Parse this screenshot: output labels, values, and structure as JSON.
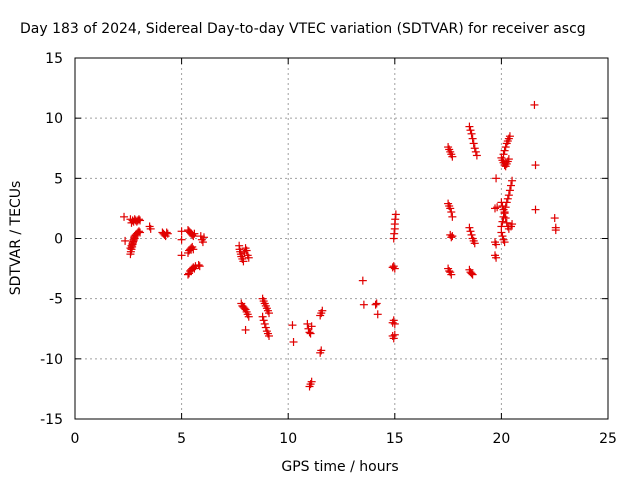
{
  "chart_data": {
    "type": "scatter",
    "title": "Day 183 of 2024, Sidereal Day-to-day VTEC variation (SDTVAR) for receiver ascg",
    "xlabel": "GPS time / hours",
    "ylabel": "SDTVAR / TECUs",
    "xlim": [
      0,
      25
    ],
    "ylim": [
      -15,
      15
    ],
    "xticks": [
      0,
      5,
      10,
      15,
      20,
      25
    ],
    "yticks": [
      -15,
      -10,
      -5,
      0,
      5,
      10,
      15
    ],
    "xtick_labels": [
      "0",
      "5",
      "10",
      "15",
      "20",
      "25"
    ],
    "ytick_labels": [
      "-15",
      "-10",
      "-5",
      "0",
      "5",
      "10",
      "15"
    ],
    "grid": true,
    "marker": "plus",
    "series": [
      {
        "name": "SDTVAR",
        "color": "#e00000",
        "points": [
          [
            2.3,
            1.8
          ],
          [
            2.35,
            -0.2
          ],
          [
            2.6,
            1.6
          ],
          [
            2.65,
            1.3
          ],
          [
            2.7,
            1.5
          ],
          [
            2.75,
            1.4
          ],
          [
            2.8,
            1.6
          ],
          [
            2.85,
            1.5
          ],
          [
            2.9,
            1.4
          ],
          [
            2.95,
            1.5
          ],
          [
            3.0,
            1.6
          ],
          [
            3.05,
            1.5
          ],
          [
            2.6,
            -1.3
          ],
          [
            2.62,
            -1.1
          ],
          [
            2.65,
            -0.9
          ],
          [
            2.68,
            -0.7
          ],
          [
            2.7,
            -0.5
          ],
          [
            2.72,
            -0.3
          ],
          [
            2.75,
            -0.1
          ],
          [
            2.78,
            0.1
          ],
          [
            2.8,
            0.2
          ],
          [
            2.85,
            0.3
          ],
          [
            2.9,
            0.4
          ],
          [
            2.95,
            0.5
          ],
          [
            3.0,
            0.6
          ],
          [
            3.05,
            0.5
          ],
          [
            2.6,
            -0.8
          ],
          [
            2.65,
            -0.6
          ],
          [
            2.7,
            -0.4
          ],
          [
            2.75,
            -0.2
          ],
          [
            2.8,
            0.0
          ],
          [
            3.5,
            1.0
          ],
          [
            3.55,
            0.8
          ],
          [
            4.1,
            0.5
          ],
          [
            4.15,
            0.4
          ],
          [
            4.2,
            0.3
          ],
          [
            4.25,
            0.2
          ],
          [
            4.3,
            0.5
          ],
          [
            4.35,
            0.4
          ],
          [
            5.0,
            -0.1
          ],
          [
            5.0,
            -1.4
          ],
          [
            5.0,
            0.6
          ],
          [
            5.3,
            0.7
          ],
          [
            5.35,
            0.6
          ],
          [
            5.4,
            0.5
          ],
          [
            5.45,
            0.4
          ],
          [
            5.5,
            0.3
          ],
          [
            5.55,
            0.2
          ],
          [
            5.6,
            0.4
          ],
          [
            5.3,
            -1.2
          ],
          [
            5.35,
            -1.0
          ],
          [
            5.4,
            -0.9
          ],
          [
            5.45,
            -0.8
          ],
          [
            5.5,
            -0.7
          ],
          [
            5.55,
            -0.9
          ],
          [
            5.3,
            -3.0
          ],
          [
            5.35,
            -2.9
          ],
          [
            5.4,
            -2.7
          ],
          [
            5.45,
            -2.6
          ],
          [
            5.5,
            -2.5
          ],
          [
            5.55,
            -2.4
          ],
          [
            5.6,
            -2.5
          ],
          [
            5.65,
            -2.3
          ],
          [
            5.8,
            -2.2
          ],
          [
            5.85,
            -2.3
          ],
          [
            5.9,
            0.2
          ],
          [
            5.95,
            -0.1
          ],
          [
            6.0,
            -0.3
          ],
          [
            6.05,
            0.1
          ],
          [
            7.7,
            -0.6
          ],
          [
            7.72,
            -0.9
          ],
          [
            7.75,
            -1.1
          ],
          [
            7.78,
            -1.3
          ],
          [
            7.8,
            -1.5
          ],
          [
            7.85,
            -1.7
          ],
          [
            7.9,
            -1.9
          ],
          [
            7.95,
            -1.2
          ],
          [
            8.0,
            -0.8
          ],
          [
            8.05,
            -1.0
          ],
          [
            8.1,
            -1.4
          ],
          [
            8.15,
            -1.6
          ],
          [
            7.8,
            -5.4
          ],
          [
            7.85,
            -5.6
          ],
          [
            7.9,
            -5.7
          ],
          [
            7.95,
            -5.8
          ],
          [
            8.0,
            -5.9
          ],
          [
            8.05,
            -6.1
          ],
          [
            8.1,
            -6.3
          ],
          [
            8.15,
            -6.5
          ],
          [
            8.0,
            -7.6
          ],
          [
            8.8,
            -5.0
          ],
          [
            8.85,
            -5.2
          ],
          [
            8.9,
            -5.4
          ],
          [
            8.95,
            -5.6
          ],
          [
            9.0,
            -5.8
          ],
          [
            9.05,
            -6.0
          ],
          [
            9.1,
            -6.2
          ],
          [
            8.8,
            -6.5
          ],
          [
            8.85,
            -6.8
          ],
          [
            8.9,
            -7.1
          ],
          [
            8.95,
            -7.4
          ],
          [
            9.0,
            -7.7
          ],
          [
            9.05,
            -7.9
          ],
          [
            9.1,
            -8.1
          ],
          [
            10.2,
            -7.2
          ],
          [
            10.25,
            -8.6
          ],
          [
            10.9,
            -7.1
          ],
          [
            10.95,
            -7.5
          ],
          [
            11.0,
            -7.8
          ],
          [
            11.05,
            -7.9
          ],
          [
            11.1,
            -7.3
          ],
          [
            11.0,
            -12.3
          ],
          [
            11.05,
            -12.1
          ],
          [
            11.1,
            -11.9
          ],
          [
            11.5,
            -6.4
          ],
          [
            11.55,
            -6.2
          ],
          [
            11.6,
            -6.0
          ],
          [
            11.5,
            -9.5
          ],
          [
            11.55,
            -9.3
          ],
          [
            13.5,
            -3.5
          ],
          [
            13.55,
            -5.5
          ],
          [
            14.1,
            -5.5
          ],
          [
            14.15,
            -5.4
          ],
          [
            14.2,
            -6.3
          ],
          [
            14.9,
            -7.0
          ],
          [
            14.95,
            -6.8
          ],
          [
            15.0,
            -7.1
          ],
          [
            14.9,
            -8.1
          ],
          [
            14.95,
            -8.3
          ],
          [
            15.0,
            -8.0
          ],
          [
            14.9,
            -2.4
          ],
          [
            14.95,
            -2.3
          ],
          [
            15.0,
            -2.5
          ],
          [
            14.95,
            0.0
          ],
          [
            14.97,
            0.4
          ],
          [
            15.0,
            0.8
          ],
          [
            15.0,
            1.2
          ],
          [
            15.02,
            1.6
          ],
          [
            15.05,
            2.0
          ],
          [
            17.5,
            7.6
          ],
          [
            17.55,
            7.4
          ],
          [
            17.6,
            7.2
          ],
          [
            17.65,
            7.0
          ],
          [
            17.7,
            6.8
          ],
          [
            17.5,
            2.9
          ],
          [
            17.55,
            2.7
          ],
          [
            17.6,
            2.5
          ],
          [
            17.65,
            2.2
          ],
          [
            17.7,
            1.8
          ],
          [
            17.6,
            0.3
          ],
          [
            17.65,
            0.1
          ],
          [
            17.7,
            0.2
          ],
          [
            17.5,
            -2.5
          ],
          [
            17.55,
            -2.7
          ],
          [
            17.6,
            -2.8
          ],
          [
            17.65,
            -3.0
          ],
          [
            18.5,
            9.3
          ],
          [
            18.55,
            9.0
          ],
          [
            18.6,
            8.7
          ],
          [
            18.65,
            8.3
          ],
          [
            18.7,
            7.9
          ],
          [
            18.75,
            7.5
          ],
          [
            18.8,
            7.2
          ],
          [
            18.85,
            6.9
          ],
          [
            18.5,
            0.9
          ],
          [
            18.55,
            0.6
          ],
          [
            18.6,
            0.3
          ],
          [
            18.65,
            0.0
          ],
          [
            18.7,
            -0.2
          ],
          [
            18.75,
            -0.4
          ],
          [
            18.5,
            -2.6
          ],
          [
            18.55,
            -2.8
          ],
          [
            18.6,
            -2.9
          ],
          [
            18.65,
            -3.0
          ],
          [
            19.7,
            -0.3
          ],
          [
            19.75,
            -0.5
          ],
          [
            19.7,
            -1.4
          ],
          [
            19.75,
            -1.6
          ],
          [
            19.7,
            2.5
          ],
          [
            19.8,
            2.6
          ],
          [
            19.75,
            5.0
          ],
          [
            20.0,
            6.7
          ],
          [
            20.05,
            6.5
          ],
          [
            20.1,
            6.3
          ],
          [
            20.15,
            6.1
          ],
          [
            20.2,
            6.0
          ],
          [
            20.25,
            6.2
          ],
          [
            20.3,
            6.4
          ],
          [
            20.35,
            6.6
          ],
          [
            20.1,
            7.0
          ],
          [
            20.15,
            7.3
          ],
          [
            20.2,
            7.6
          ],
          [
            20.25,
            7.9
          ],
          [
            20.3,
            8.1
          ],
          [
            20.35,
            8.3
          ],
          [
            20.4,
            8.5
          ],
          [
            20.0,
            1.0
          ],
          [
            20.05,
            1.4
          ],
          [
            20.1,
            1.8
          ],
          [
            20.15,
            2.2
          ],
          [
            20.2,
            2.6
          ],
          [
            20.25,
            3.0
          ],
          [
            20.3,
            3.3
          ],
          [
            20.35,
            3.6
          ],
          [
            20.4,
            4.0
          ],
          [
            20.45,
            4.4
          ],
          [
            20.5,
            4.8
          ],
          [
            20.0,
            3.0
          ],
          [
            20.05,
            2.7
          ],
          [
            20.1,
            2.4
          ],
          [
            20.15,
            2.1
          ],
          [
            20.2,
            1.7
          ],
          [
            20.25,
            1.3
          ],
          [
            20.3,
            1.0
          ],
          [
            20.35,
            0.8
          ],
          [
            20.0,
            0.5
          ],
          [
            20.05,
            0.2
          ],
          [
            20.1,
            -0.1
          ],
          [
            20.15,
            -0.3
          ],
          [
            20.45,
            1.0
          ],
          [
            20.5,
            1.2
          ],
          [
            21.55,
            11.1
          ],
          [
            21.6,
            6.1
          ],
          [
            21.6,
            2.4
          ],
          [
            22.5,
            1.7
          ],
          [
            22.55,
            0.9
          ],
          [
            22.55,
            0.7
          ]
        ]
      }
    ]
  }
}
